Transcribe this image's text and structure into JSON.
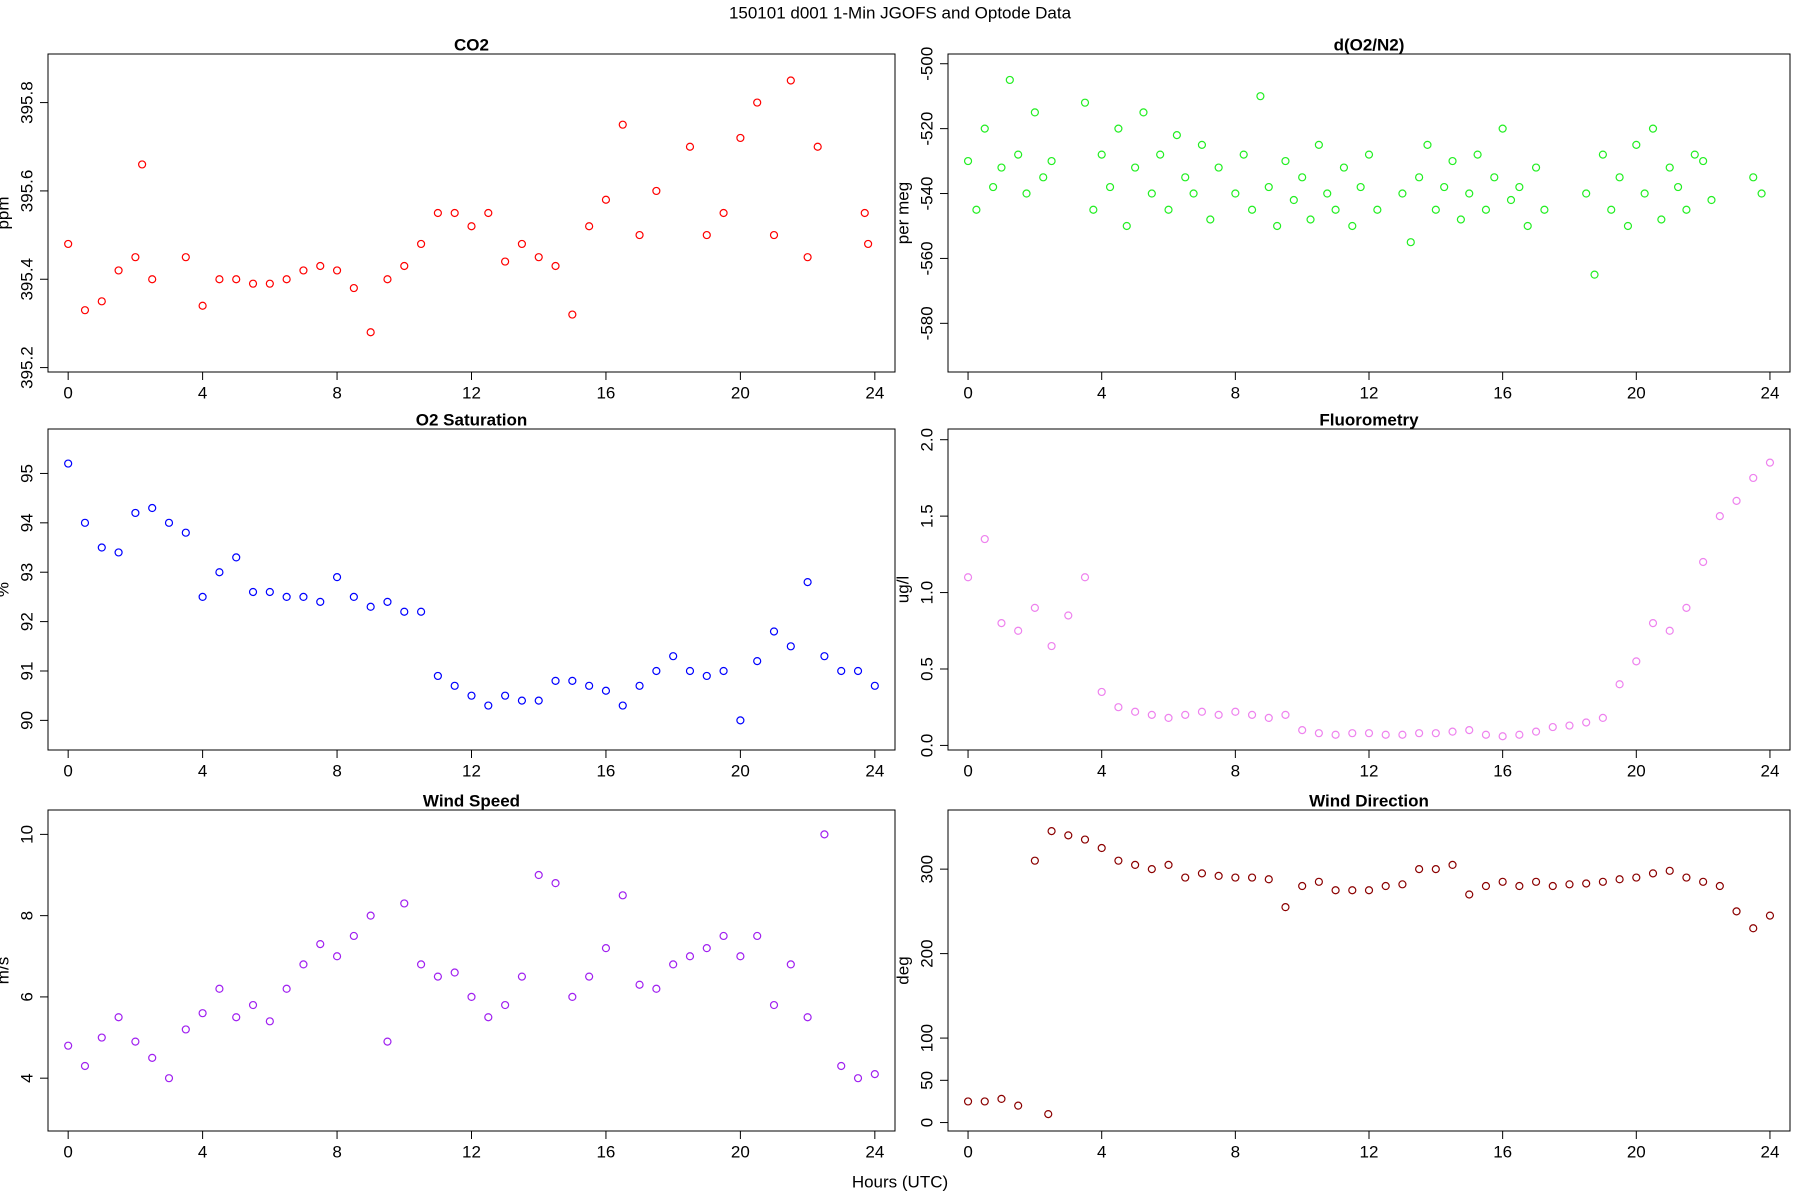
{
  "title": "150101   d001   1-Min  JGOFS and Optode Data",
  "x_label": "Hours (UTC)",
  "chart_data": [
    {
      "type": "scatter",
      "title": "CO2",
      "y_label": "ppm",
      "color": "#ff0000",
      "xlim": [
        -0.6,
        24.6
      ],
      "xticks": [
        0,
        4,
        8,
        12,
        16,
        20,
        24
      ],
      "ylim": [
        395.19,
        395.91
      ],
      "yticks": [
        395.2,
        395.4,
        395.6,
        395.8
      ],
      "x": [
        0,
        0.5,
        1,
        1.5,
        2,
        2.2,
        2.5,
        3.5,
        4,
        4.5,
        5,
        5.5,
        6,
        6.5,
        7,
        7.5,
        8,
        8.5,
        9,
        9.5,
        10,
        10.5,
        11,
        11.5,
        12,
        12.5,
        13,
        13.5,
        14,
        14.5,
        15,
        15.5,
        16,
        16.5,
        17,
        17.5,
        18.5,
        19,
        19.5,
        20,
        20.5,
        21,
        21.5,
        22,
        22.3,
        23.7,
        23.8
      ],
      "values": [
        395.48,
        395.33,
        395.35,
        395.42,
        395.45,
        395.66,
        395.4,
        395.45,
        395.34,
        395.4,
        395.4,
        395.39,
        395.39,
        395.4,
        395.42,
        395.43,
        395.42,
        395.38,
        395.28,
        395.4,
        395.43,
        395.48,
        395.55,
        395.55,
        395.52,
        395.55,
        395.44,
        395.48,
        395.45,
        395.43,
        395.32,
        395.52,
        395.58,
        395.75,
        395.5,
        395.6,
        395.7,
        395.5,
        395.55,
        395.72,
        395.8,
        395.5,
        395.85,
        395.45,
        395.7,
        395.55,
        395.48
      ]
    },
    {
      "type": "scatter",
      "title": "d(O2/N2)",
      "y_label": "per meg",
      "color": "#22ee22",
      "xlim": [
        -0.6,
        24.6
      ],
      "xticks": [
        0,
        4,
        8,
        12,
        16,
        20,
        24
      ],
      "ylim": [
        -595,
        -497
      ],
      "yticks": [
        -500,
        -520,
        -540,
        -560,
        -580
      ],
      "x": [
        0,
        0.25,
        0.5,
        0.75,
        1,
        1.25,
        1.5,
        1.75,
        2,
        2.25,
        2.5,
        3.5,
        3.75,
        4,
        4.25,
        4.5,
        4.75,
        5,
        5.25,
        5.5,
        5.75,
        6,
        6.25,
        6.5,
        6.75,
        7,
        7.25,
        7.5,
        8,
        8.25,
        8.5,
        8.75,
        9,
        9.25,
        9.5,
        9.75,
        10,
        10.25,
        10.5,
        10.75,
        11,
        11.25,
        11.5,
        11.75,
        12,
        12.25,
        13,
        13.25,
        13.5,
        13.75,
        14,
        14.25,
        14.5,
        14.75,
        15,
        15.25,
        15.5,
        15.75,
        16,
        16.25,
        16.5,
        16.75,
        17,
        17.25,
        18.5,
        18.75,
        19,
        19.25,
        19.5,
        19.75,
        20,
        20.25,
        20.5,
        20.75,
        21,
        21.25,
        21.5,
        21.75,
        22,
        22.25,
        23.5,
        23.75
      ],
      "values": [
        -530,
        -545,
        -520,
        -538,
        -532,
        -505,
        -528,
        -540,
        -515,
        -535,
        -530,
        -512,
        -545,
        -528,
        -538,
        -520,
        -550,
        -532,
        -515,
        -540,
        -528,
        -545,
        -522,
        -535,
        -540,
        -525,
        -548,
        -532,
        -540,
        -528,
        -545,
        -510,
        -538,
        -550,
        -530,
        -542,
        -535,
        -548,
        -525,
        -540,
        -545,
        -532,
        -550,
        -538,
        -528,
        -545,
        -540,
        -555,
        -535,
        -525,
        -545,
        -538,
        -530,
        -548,
        -540,
        -528,
        -545,
        -535,
        -520,
        -542,
        -538,
        -550,
        -532,
        -545,
        -540,
        -565,
        -528,
        -545,
        -535,
        -550,
        -525,
        -540,
        -520,
        -548,
        -532,
        -538,
        -545,
        -528,
        -530,
        -542,
        -535,
        -540
      ]
    },
    {
      "type": "scatter",
      "title": "O2 Saturation",
      "y_label": "%",
      "color": "#0000ff",
      "xlim": [
        -0.6,
        24.6
      ],
      "xticks": [
        0,
        4,
        8,
        12,
        16,
        20,
        24
      ],
      "ylim": [
        89.4,
        95.9
      ],
      "yticks": [
        90,
        91,
        92,
        93,
        94,
        95
      ],
      "x": [
        0,
        0.5,
        1,
        1.5,
        2,
        2.5,
        3,
        3.5,
        4,
        4.5,
        5,
        5.5,
        6,
        6.5,
        7,
        7.5,
        8,
        8.5,
        9,
        9.5,
        10,
        10.5,
        11,
        11.5,
        12,
        12.5,
        13,
        13.5,
        14,
        14.5,
        15,
        15.5,
        16,
        16.5,
        17,
        17.5,
        18,
        18.5,
        19,
        19.5,
        20,
        20.5,
        21,
        21.5,
        22,
        22.5,
        23,
        23.5,
        24
      ],
      "values": [
        95.2,
        94.0,
        93.5,
        93.4,
        94.2,
        94.3,
        94.0,
        93.8,
        92.5,
        93.0,
        93.3,
        92.6,
        92.6,
        92.5,
        92.5,
        92.4,
        92.9,
        92.5,
        92.3,
        92.4,
        92.2,
        92.2,
        90.9,
        90.7,
        90.5,
        90.3,
        90.5,
        90.4,
        90.4,
        90.8,
        90.8,
        90.7,
        90.6,
        90.3,
        90.7,
        91.0,
        91.3,
        91.0,
        90.9,
        91.0,
        90.0,
        91.2,
        91.8,
        91.5,
        92.8,
        91.3,
        91.0,
        91.0,
        90.7
      ]
    },
    {
      "type": "scatter",
      "title": "Fluorometry",
      "y_label": "ug/l",
      "color": "#ee82ee",
      "xlim": [
        -0.6,
        24.6
      ],
      "xticks": [
        0,
        4,
        8,
        12,
        16,
        20,
        24
      ],
      "ylim": [
        -0.03,
        2.07
      ],
      "yticks": [
        {
          "value": 0,
          "label": "0.0"
        },
        0.5,
        {
          "value": 1,
          "label": "1.0"
        },
        1.5,
        {
          "value": 2,
          "label": "2.0"
        }
      ],
      "x": [
        0,
        0.5,
        1,
        1.5,
        2,
        2.5,
        3,
        3.5,
        4,
        4.5,
        5,
        5.5,
        6,
        6.5,
        7,
        7.5,
        8,
        8.5,
        9,
        9.5,
        10,
        10.5,
        11,
        11.5,
        12,
        12.5,
        13,
        13.5,
        14,
        14.5,
        15,
        15.5,
        16,
        16.5,
        17,
        17.5,
        18,
        18.5,
        19,
        19.5,
        20,
        20.5,
        21,
        21.5,
        22,
        22.5,
        23,
        23.5,
        24
      ],
      "values": [
        1.1,
        1.35,
        0.8,
        0.75,
        0.9,
        0.65,
        0.85,
        1.1,
        0.35,
        0.25,
        0.22,
        0.2,
        0.18,
        0.2,
        0.22,
        0.2,
        0.22,
        0.2,
        0.18,
        0.2,
        0.1,
        0.08,
        0.07,
        0.08,
        0.08,
        0.07,
        0.07,
        0.08,
        0.08,
        0.09,
        0.1,
        0.07,
        0.06,
        0.07,
        0.09,
        0.12,
        0.13,
        0.15,
        0.18,
        0.4,
        0.55,
        0.8,
        0.75,
        0.9,
        1.2,
        1.5,
        1.6,
        1.75,
        1.85
      ]
    },
    {
      "type": "scatter",
      "title": "Wind Speed",
      "y_label": "m/s",
      "color": "#a020f0",
      "xlim": [
        -0.6,
        24.6
      ],
      "xticks": [
        0,
        4,
        8,
        12,
        16,
        20,
        24
      ],
      "ylim": [
        2.7,
        10.6
      ],
      "yticks": [
        4,
        6,
        8,
        10
      ],
      "x": [
        0,
        0.5,
        1,
        1.5,
        2,
        2.5,
        3,
        3.5,
        4,
        4.5,
        5,
        5.5,
        6,
        6.5,
        7,
        7.5,
        8,
        8.5,
        9,
        9.5,
        10,
        10.5,
        11,
        11.5,
        12,
        12.5,
        13,
        13.5,
        14,
        14.5,
        15,
        15.5,
        16,
        16.5,
        17,
        17.5,
        18,
        18.5,
        19,
        19.5,
        20,
        20.5,
        21,
        21.5,
        22,
        22.5,
        23,
        23.5,
        24
      ],
      "values": [
        4.8,
        4.3,
        5.0,
        5.5,
        4.9,
        4.5,
        4.0,
        5.2,
        5.6,
        6.2,
        5.5,
        5.8,
        5.4,
        6.2,
        6.8,
        7.3,
        7.0,
        7.5,
        8.0,
        4.9,
        8.3,
        6.8,
        6.5,
        6.6,
        6.0,
        5.5,
        5.8,
        6.5,
        9.0,
        8.8,
        6.0,
        6.5,
        7.2,
        8.5,
        6.3,
        6.2,
        6.8,
        7.0,
        7.2,
        7.5,
        7.0,
        7.5,
        5.8,
        6.8,
        5.5,
        10.0,
        4.3,
        4.0,
        4.1
      ]
    },
    {
      "type": "scatter",
      "title": "Wind Direction",
      "y_label": "deg",
      "color": "#8b0000",
      "xlim": [
        -0.6,
        24.6
      ],
      "xticks": [
        0,
        4,
        8,
        12,
        16,
        20,
        24
      ],
      "ylim": [
        -10,
        370
      ],
      "yticks": [
        0,
        50,
        100,
        200,
        300
      ],
      "x": [
        0,
        0.5,
        1,
        1.5,
        2,
        2.4,
        2.5,
        3,
        3.5,
        4,
        4.5,
        5,
        5.5,
        6,
        6.5,
        7,
        7.5,
        8,
        8.5,
        9,
        9.5,
        10,
        10.5,
        11,
        11.5,
        12,
        12.5,
        13,
        13.5,
        14,
        14.5,
        15,
        15.5,
        16,
        16.5,
        17,
        17.5,
        18,
        18.5,
        19,
        19.5,
        20,
        20.5,
        21,
        21.5,
        22,
        22.5,
        23,
        23.5,
        24
      ],
      "values": [
        25,
        25,
        28,
        20,
        310,
        10,
        345,
        340,
        335,
        325,
        310,
        305,
        300,
        305,
        290,
        295,
        292,
        290,
        290,
        288,
        255,
        280,
        285,
        275,
        275,
        275,
        280,
        282,
        300,
        300,
        305,
        270,
        280,
        285,
        280,
        285,
        280,
        282,
        283,
        285,
        288,
        290,
        295,
        298,
        290,
        285,
        280,
        250,
        230,
        245
      ]
    }
  ]
}
